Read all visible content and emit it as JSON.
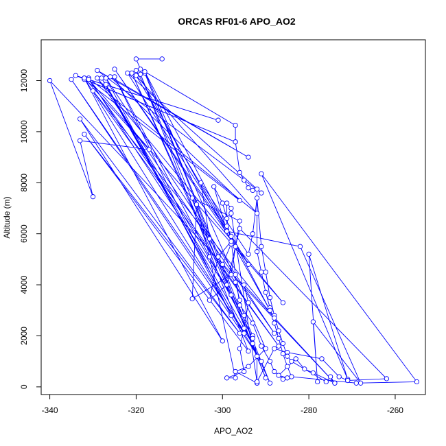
{
  "chart_data": {
    "type": "line",
    "title": "ORCAS RF01-6 APO_AO2",
    "xlabel": "APO_AO2",
    "ylabel": "Altitude (m)",
    "xlim": [
      -342,
      -253
    ],
    "ylim": [
      -300,
      13600
    ],
    "xticks": [
      -340,
      -320,
      -300,
      -280,
      -260
    ],
    "yticks": [
      0,
      2000,
      4000,
      6000,
      8000,
      10000,
      12000
    ],
    "grid": false,
    "legend": "none",
    "color": "#0000ff",
    "marker": "open-circle",
    "series": [
      {
        "points": [
          [
            -314,
            12850
          ],
          [
            -320,
            12850
          ],
          [
            -319,
            12450
          ],
          [
            -297,
            10250
          ],
          [
            -297,
            9600
          ],
          [
            -296,
            8400
          ],
          [
            -295,
            8100
          ],
          [
            -294,
            7800
          ],
          [
            -293,
            7700
          ],
          [
            -292,
            7750
          ],
          [
            -292,
            5300
          ],
          [
            -291,
            4500
          ],
          [
            -290,
            3700
          ],
          [
            -289,
            3100
          ],
          [
            -288,
            2500
          ],
          [
            -287,
            1900
          ],
          [
            -286,
            1300
          ],
          [
            -285,
            800
          ],
          [
            -284,
            400
          ],
          [
            -269,
            150
          ],
          [
            -255,
            200
          ],
          [
            -291,
            8350
          ],
          [
            -271,
            300
          ],
          [
            -280,
            5200
          ],
          [
            -278,
            200
          ],
          [
            -279,
            2550
          ],
          [
            -268,
            150
          ],
          [
            -282,
            5500
          ],
          [
            -299,
            6100
          ],
          [
            -302,
            7850
          ],
          [
            -300,
            7200
          ],
          [
            -299,
            6600
          ],
          [
            -298,
            5600
          ],
          [
            -300,
            4800
          ],
          [
            -297,
            4100
          ],
          [
            -296,
            3400
          ],
          [
            -295,
            2800
          ],
          [
            -293,
            2000
          ],
          [
            -292,
            1200
          ],
          [
            -292,
            150
          ],
          [
            -292,
            200
          ],
          [
            -288,
            1500
          ],
          [
            -285,
            1350
          ],
          [
            -277,
            1100
          ],
          [
            -273,
            400
          ],
          [
            -271,
            250
          ],
          [
            -262,
            320
          ],
          [
            -296,
            6200
          ],
          [
            -297,
            5500
          ],
          [
            -299,
            4000
          ],
          [
            -303,
            3400
          ],
          [
            -301,
            5100
          ],
          [
            -298,
            5700
          ],
          [
            -297,
            4400
          ],
          [
            -296,
            3200
          ],
          [
            -293,
            2500
          ],
          [
            -291,
            1600
          ],
          [
            -289,
            1000
          ],
          [
            -288,
            600
          ],
          [
            -286,
            300
          ],
          [
            -285,
            350
          ],
          [
            -287,
            450
          ],
          [
            -283,
            1100
          ],
          [
            -281,
            700
          ],
          [
            -279,
            550
          ],
          [
            -274,
            150
          ],
          [
            -295,
            4000
          ],
          [
            -294,
            3300
          ],
          [
            -295,
            2300
          ],
          [
            -296,
            1500
          ],
          [
            -295,
            600
          ],
          [
            -299,
            350
          ],
          [
            -297,
            350
          ],
          [
            -303,
            5100
          ],
          [
            -306,
            7150
          ],
          [
            -307,
            3450
          ],
          [
            -298,
            4400
          ],
          [
            -296,
            6500
          ],
          [
            -307,
            7400
          ],
          [
            -303,
            5800
          ],
          [
            -305,
            8000
          ],
          [
            -294,
            5200
          ],
          [
            -293,
            6000
          ],
          [
            -292,
            7400
          ],
          [
            -291,
            5500
          ],
          [
            -290,
            4500
          ],
          [
            -289,
            3500
          ],
          [
            -288,
            2800
          ],
          [
            -287,
            2200
          ],
          [
            -286,
            1700
          ],
          [
            -285,
            1200
          ],
          [
            -284,
            1000
          ],
          [
            -276,
            200
          ],
          [
            -275,
            400
          ],
          [
            -274,
            150
          ],
          [
            -340,
            12000
          ],
          [
            -330,
            7450
          ],
          [
            -333,
            9650
          ],
          [
            -317,
            9300
          ],
          [
            -332,
            12100
          ],
          [
            -301,
            10450
          ],
          [
            -334,
            12200
          ],
          [
            -297,
            9600
          ],
          [
            -332,
            12050
          ],
          [
            -296,
            7300
          ],
          [
            -326,
            12150
          ],
          [
            -294,
            9000
          ],
          [
            -329,
            12400
          ],
          [
            -291,
            7600
          ],
          [
            -322,
            12300
          ],
          [
            -298,
            5900
          ],
          [
            -325,
            12450
          ],
          [
            -294,
            4800
          ],
          [
            -320,
            12200
          ],
          [
            -292,
            6800
          ],
          [
            -331,
            12100
          ],
          [
            -298,
            3600
          ],
          [
            -328,
            12100
          ],
          [
            -295,
            2100
          ],
          [
            -327,
            11850
          ],
          [
            -293,
            1700
          ],
          [
            -335,
            12050
          ],
          [
            -291,
            1000
          ],
          [
            -332,
            12100
          ],
          [
            -300,
            1800
          ],
          [
            -333,
            10500
          ],
          [
            -296,
            2100
          ],
          [
            -332,
            9900
          ],
          [
            -294,
            1400
          ],
          [
            -319,
            12250
          ],
          [
            -290,
            350
          ],
          [
            -318,
            12300
          ],
          [
            -289,
            150
          ],
          [
            -321,
            12300
          ],
          [
            -293,
            1900
          ],
          [
            -325,
            12150
          ],
          [
            -298,
            2800
          ],
          [
            -327,
            12100
          ],
          [
            -288,
            2100
          ],
          [
            -329,
            12100
          ],
          [
            -286,
            3300
          ],
          [
            -331,
            12050
          ],
          [
            -287,
            1600
          ],
          [
            -330,
            11600
          ],
          [
            -288,
            2700
          ],
          [
            -320,
            12400
          ],
          [
            -289,
            3000
          ],
          [
            -318,
            12350
          ],
          [
            -290,
            1500
          ],
          [
            -294,
            800
          ],
          [
            -297,
            600
          ],
          [
            -292,
            150
          ],
          [
            -292,
            200
          ],
          [
            -298,
            6800
          ],
          [
            -298,
            7000
          ],
          [
            -299,
            7200
          ],
          [
            -299,
            6300
          ]
        ]
      }
    ]
  }
}
